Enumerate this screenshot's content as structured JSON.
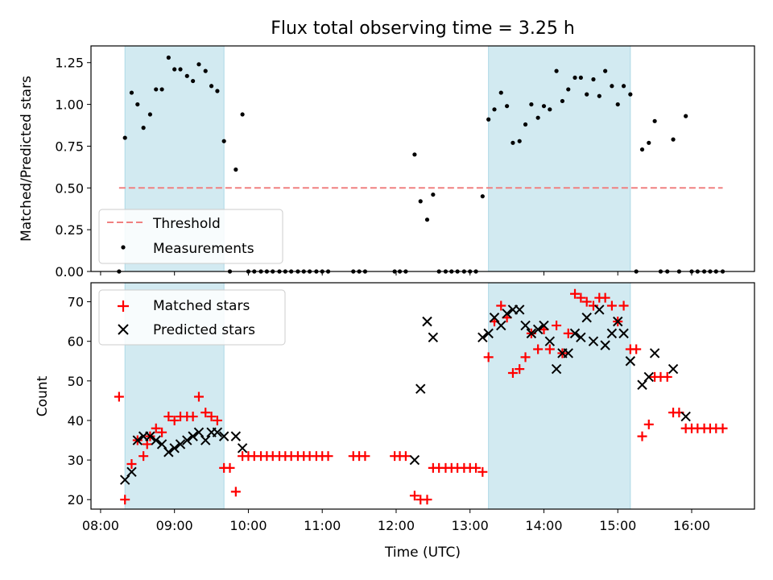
{
  "chart_data": [
    {
      "type": "scatter",
      "title": "Flux total observing time = 3.25 h",
      "xlabel": "",
      "ylabel": "Matched/Predicted stars",
      "xlim": [
        7.87,
        16.85
      ],
      "ylim": [
        0,
        1.35
      ],
      "x_ticks": [
        8,
        9,
        10,
        11,
        12,
        13,
        14,
        15,
        16
      ],
      "y_ticks": [
        0.0,
        0.25,
        0.5,
        0.75,
        1.0,
        1.25
      ],
      "y_tick_labels": [
        "0.00",
        "0.25",
        "0.50",
        "0.75",
        "1.00",
        "1.25"
      ],
      "shaded_ranges": [
        [
          8.33,
          9.67
        ],
        [
          13.25,
          15.17
        ]
      ],
      "threshold": {
        "name": "Threshold",
        "y": 0.5,
        "x_start": 8.25,
        "x_end": 16.42,
        "color": "#f08080"
      },
      "legend": {
        "position": "lower-left",
        "entries": [
          "Threshold",
          "Measurements"
        ]
      },
      "series": [
        {
          "name": "Measurements",
          "marker": "dot",
          "color": "#000000",
          "x": [
            8.25,
            8.33,
            8.42,
            8.5,
            8.58,
            8.67,
            8.75,
            8.83,
            8.92,
            9.0,
            9.08,
            9.17,
            9.25,
            9.33,
            9.42,
            9.5,
            9.58,
            9.67,
            9.75,
            9.83,
            9.92,
            10.0,
            10.08,
            10.17,
            10.25,
            10.33,
            10.42,
            10.5,
            10.58,
            10.67,
            10.75,
            10.83,
            10.92,
            11.0,
            11.08,
            11.42,
            11.5,
            11.58,
            11.98,
            12.05,
            12.13,
            12.25,
            12.33,
            12.42,
            12.5,
            12.58,
            12.67,
            12.75,
            12.83,
            12.92,
            13.0,
            13.08,
            13.17,
            13.25,
            13.33,
            13.42,
            13.5,
            13.58,
            13.67,
            13.75,
            13.83,
            13.92,
            14.0,
            14.08,
            14.17,
            14.25,
            14.33,
            14.42,
            14.5,
            14.58,
            14.67,
            14.75,
            14.83,
            14.92,
            15.0,
            15.08,
            15.17,
            15.25,
            15.33,
            15.42,
            15.5,
            15.58,
            15.67,
            15.75,
            15.83,
            15.92,
            16.0,
            16.08,
            16.17,
            16.25,
            16.33,
            16.42
          ],
          "y": [
            0.0,
            0.8,
            1.07,
            1.0,
            0.86,
            0.94,
            1.09,
            1.09,
            1.28,
            1.21,
            1.21,
            1.17,
            1.14,
            1.24,
            1.2,
            1.11,
            1.08,
            0.78,
            0.0,
            0.61,
            0.94,
            0.0,
            0.0,
            0.0,
            0.0,
            0.0,
            0.0,
            0.0,
            0.0,
            0.0,
            0.0,
            0.0,
            0.0,
            0.0,
            0.0,
            0.0,
            0.0,
            0.0,
            0.0,
            0.0,
            0.0,
            0.7,
            0.42,
            0.31,
            0.46,
            0.0,
            0.0,
            0.0,
            0.0,
            0.0,
            0.0,
            0.0,
            0.45,
            0.91,
            0.97,
            1.07,
            0.99,
            0.77,
            0.78,
            0.88,
            1.0,
            0.92,
            0.99,
            0.97,
            1.2,
            1.02,
            1.09,
            1.16,
            1.16,
            1.06,
            1.15,
            1.05,
            1.2,
            1.11,
            1.0,
            1.11,
            1.06,
            0.0,
            0.73,
            0.77,
            0.9,
            0.0,
            0.0,
            0.79,
            0.0,
            0.93,
            0.0,
            0.0,
            0.0,
            0.0,
            0.0,
            0.0
          ]
        }
      ]
    },
    {
      "type": "scatter",
      "title": "",
      "xlabel": "Time (UTC)",
      "ylabel": "Count",
      "xlim": [
        7.87,
        16.85
      ],
      "ylim": [
        17.6,
        74.8
      ],
      "x_ticks": [
        8,
        9,
        10,
        11,
        12,
        13,
        14,
        15,
        16
      ],
      "x_tick_labels": [
        "08:00",
        "09:00",
        "10:00",
        "11:00",
        "12:00",
        "13:00",
        "14:00",
        "15:00",
        "16:00"
      ],
      "y_ticks": [
        20,
        30,
        40,
        50,
        60,
        70
      ],
      "y_tick_labels": [
        "20",
        "30",
        "40",
        "50",
        "60",
        "70"
      ],
      "shaded_ranges": [
        [
          8.33,
          9.67
        ],
        [
          13.25,
          15.17
        ]
      ],
      "legend": {
        "position": "upper-left",
        "entries": [
          "Matched stars",
          "Predicted stars"
        ]
      },
      "series": [
        {
          "name": "Matched stars",
          "marker": "plus",
          "color": "#ff0000",
          "x": [
            8.25,
            8.33,
            8.42,
            8.5,
            8.58,
            8.63,
            8.67,
            8.75,
            8.83,
            8.92,
            9.0,
            9.08,
            9.17,
            9.25,
            9.33,
            9.42,
            9.5,
            9.58,
            9.67,
            9.75,
            9.83,
            9.92,
            10.0,
            10.08,
            10.17,
            10.25,
            10.33,
            10.42,
            10.5,
            10.58,
            10.67,
            10.75,
            10.83,
            10.92,
            11.0,
            11.08,
            11.42,
            11.5,
            11.58,
            11.98,
            12.05,
            12.13,
            12.25,
            12.33,
            12.42,
            12.5,
            12.58,
            12.67,
            12.75,
            12.83,
            12.92,
            13.0,
            13.08,
            13.17,
            13.25,
            13.33,
            13.42,
            13.5,
            13.58,
            13.67,
            13.75,
            13.83,
            13.92,
            14.0,
            14.08,
            14.17,
            14.25,
            14.33,
            14.42,
            14.5,
            14.58,
            14.67,
            14.75,
            14.83,
            14.92,
            15.0,
            15.08,
            15.17,
            15.25,
            15.33,
            15.42,
            15.5,
            15.58,
            15.67,
            15.75,
            15.83,
            15.92,
            16.0,
            16.08,
            16.17,
            16.25,
            16.33,
            16.42
          ],
          "y": [
            46,
            20,
            29,
            35,
            31,
            34,
            36,
            38,
            37,
            41,
            40,
            41,
            41,
            41,
            46,
            42,
            41,
            40,
            28,
            28,
            22,
            31,
            31,
            31,
            31,
            31,
            31,
            31,
            31,
            31,
            31,
            31,
            31,
            31,
            31,
            31,
            31,
            31,
            31,
            31,
            31,
            31,
            21,
            20,
            20,
            28,
            28,
            28,
            28,
            28,
            28,
            28,
            28,
            27,
            56,
            65,
            69,
            66,
            52,
            53,
            56,
            62,
            58,
            63,
            58,
            64,
            57,
            62,
            72,
            71,
            70,
            69,
            71,
            71,
            69,
            65,
            69,
            58,
            58,
            36,
            39,
            51,
            51,
            51,
            42,
            42,
            38,
            38,
            38,
            38,
            38,
            38,
            38
          ]
        },
        {
          "name": "Predicted stars",
          "marker": "x",
          "color": "#000000",
          "x": [
            8.33,
            8.42,
            8.5,
            8.58,
            8.67,
            8.75,
            8.83,
            8.92,
            9.0,
            9.08,
            9.17,
            9.25,
            9.33,
            9.42,
            9.5,
            9.58,
            9.67,
            9.83,
            9.92,
            12.25,
            12.33,
            12.42,
            12.5,
            13.17,
            13.25,
            13.33,
            13.42,
            13.5,
            13.58,
            13.67,
            13.75,
            13.83,
            13.92,
            14.0,
            14.08,
            14.17,
            14.25,
            14.33,
            14.42,
            14.5,
            14.58,
            14.67,
            14.75,
            14.83,
            14.92,
            15.0,
            15.08,
            15.17,
            15.33,
            15.42,
            15.5,
            15.75,
            15.92
          ],
          "y": [
            25,
            27,
            35,
            36,
            36,
            35,
            34,
            32,
            33,
            34,
            35,
            36,
            37,
            35,
            37,
            37,
            36,
            36,
            33,
            30,
            48,
            65,
            61,
            61,
            62,
            66,
            64,
            67,
            68,
            68,
            64,
            62,
            63,
            64,
            60,
            53,
            57,
            57,
            62,
            61,
            66,
            60,
            68,
            59,
            62,
            65,
            62,
            55,
            49,
            51,
            57,
            53,
            41
          ]
        }
      ]
    }
  ]
}
